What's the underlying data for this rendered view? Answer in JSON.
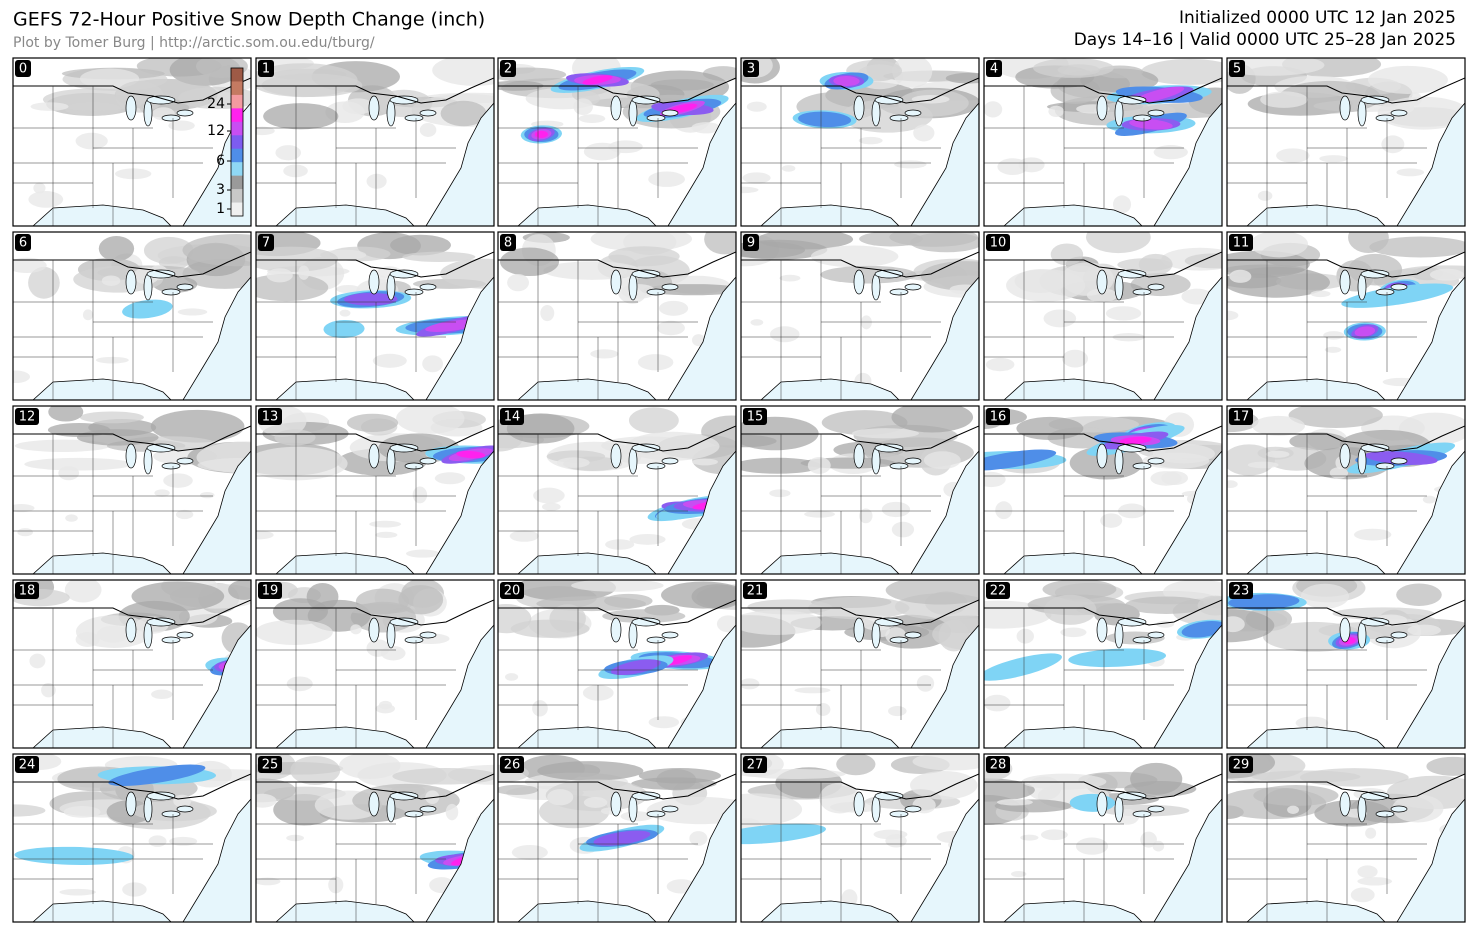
{
  "header": {
    "title": "GEFS 72-Hour Positive Snow Depth Change (inch)",
    "credit": "Plot by Tomer Burg | http://arctic.som.ou.edu/tburg/",
    "initialized": "Initialized 0000 UTC 12 Jan 2025",
    "valid": "Days 14–16 | Valid 0000 UTC 25–28 Jan 2025"
  },
  "colorbar": {
    "labels": [
      "24",
      "12",
      "6",
      "3",
      "1"
    ]
  },
  "panels": [
    "0",
    "1",
    "2",
    "3",
    "4",
    "5",
    "6",
    "7",
    "8",
    "9",
    "10",
    "11",
    "12",
    "13",
    "14",
    "15",
    "16",
    "17",
    "18",
    "19",
    "20",
    "21",
    "22",
    "23",
    "24",
    "25",
    "26",
    "27",
    "28",
    "29"
  ]
}
